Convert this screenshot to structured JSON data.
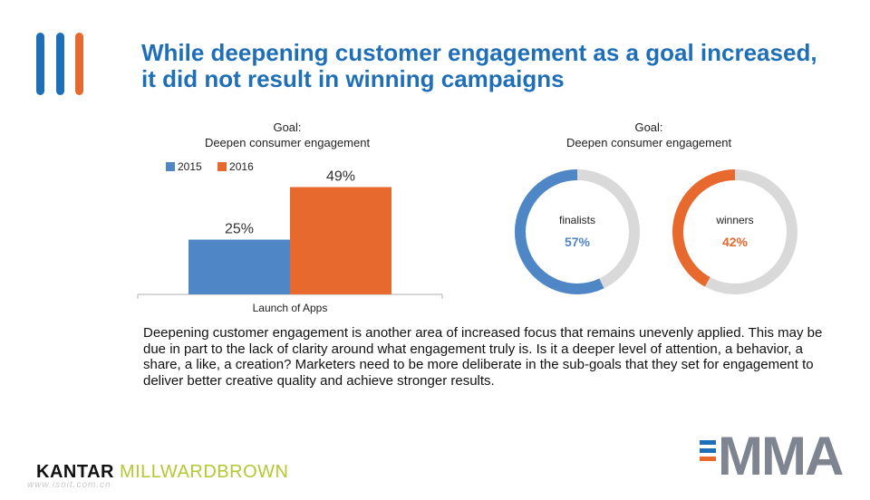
{
  "title": "While deepening customer engagement as a goal increased, it did not result in winning campaigns",
  "bar_chart_title": [
    "Goal:",
    "Deepen consumer engagement"
  ],
  "donut_chart_title": [
    "Goal:",
    "Deepen consumer engagement"
  ],
  "body_text": "Deepening customer engagement is another area of increased focus that remains unevenly applied. This may be due in part to the lack of clarity around what engagement truly is. Is it a deeper level of attention, a behavior, a share, a like, a creation? Marketers need to be more deliberate in the sub-goals that they set for engagement to deliver better creative quality and achieve stronger results.",
  "logos": {
    "kantar": "KANTAR",
    "millwardbrown": "MILLWARDBROWN",
    "mma": "MMA",
    "watermark": "www.isoit.com.cn"
  },
  "colors": {
    "blue": "#4f86c6",
    "orange": "#e8692e",
    "title_blue": "#1f6fb8",
    "donut_track": "#d9d9d9"
  },
  "chart_data": [
    {
      "type": "bar",
      "title": "Goal: Deepen consumer engagement",
      "categories": [
        "Launch of Apps"
      ],
      "series": [
        {
          "name": "2015",
          "values": [
            25
          ],
          "label": "25%",
          "color": "#4f86c6"
        },
        {
          "name": "2016",
          "values": [
            49
          ],
          "label": "49%",
          "color": "#e8692e"
        }
      ],
      "ylim": [
        0,
        55
      ],
      "grid": false,
      "legend": "top-left"
    },
    {
      "type": "pie",
      "title": "Goal: Deepen consumer engagement",
      "donuts": [
        {
          "name": "finalists",
          "value": 57,
          "label": "57%",
          "color": "#4f86c6",
          "remainder_color": "#d9d9d9"
        },
        {
          "name": "winners",
          "value": 42,
          "label": "42%",
          "color": "#e8692e",
          "remainder_color": "#d9d9d9"
        }
      ]
    }
  ]
}
